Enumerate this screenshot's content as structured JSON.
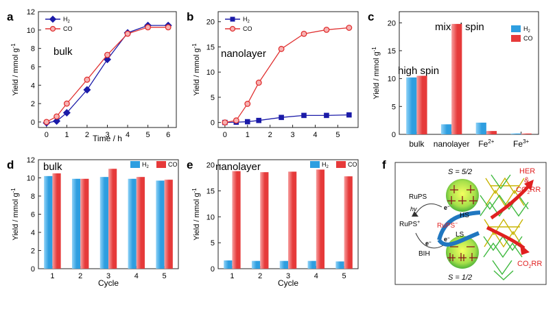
{
  "panels": {
    "a": {
      "letter": "a",
      "annotation": "bulk"
    },
    "b": {
      "letter": "b",
      "annotation": "nanolayer"
    },
    "c": {
      "letter": "c",
      "annotation_high": "high spin",
      "annotation_mixed": "mixed spin"
    },
    "d": {
      "letter": "d",
      "annotation": "bulk"
    },
    "e": {
      "letter": "e",
      "annotation": "nanolayer"
    },
    "f": {
      "letter": "f"
    }
  },
  "colors": {
    "h2_line": "#1a1aa8",
    "co_line": "#e03030",
    "h2_bar": "#2e9ee0",
    "co_bar": "#e63a3a",
    "h2_bar_light": "#8fd2f7",
    "co_bar_light": "#f7a0a0"
  },
  "chart_data": [
    {
      "id": "a",
      "type": "line",
      "x": [
        0,
        0.5,
        1,
        2,
        3,
        4,
        5,
        6
      ],
      "series": [
        {
          "name": "H2",
          "label_main": "H",
          "label_sub": "2",
          "marker": "diamond",
          "values": [
            -0.1,
            0.1,
            1.0,
            3.5,
            6.8,
            9.7,
            10.5,
            10.5
          ]
        },
        {
          "name": "CO",
          "label_main": "CO",
          "label_sub": "",
          "marker": "circle",
          "values": [
            0.0,
            0.6,
            2.0,
            4.6,
            7.3,
            9.6,
            10.3,
            10.3
          ]
        }
      ],
      "xlabel": "Time / h",
      "ylabel": "Yield / mmol g",
      "xlim": [
        -0.4,
        6.4
      ],
      "ylim": [
        -0.6,
        12
      ],
      "xticks": [
        0,
        1,
        2,
        3,
        4,
        5,
        6
      ],
      "yticks": [
        0,
        2,
        4,
        6,
        8,
        10,
        12
      ]
    },
    {
      "id": "b",
      "type": "line",
      "x": [
        0,
        0.5,
        1,
        1.5,
        2.5,
        3.5,
        4.5,
        5.5
      ],
      "series": [
        {
          "name": "H2",
          "label_main": "H",
          "label_sub": "2",
          "marker": "square",
          "values": [
            0.0,
            0.05,
            0.15,
            0.4,
            1.0,
            1.4,
            1.4,
            1.5
          ]
        },
        {
          "name": "CO",
          "label_main": "CO",
          "label_sub": "",
          "marker": "circle",
          "values": [
            0.0,
            0.4,
            3.7,
            7.9,
            14.6,
            17.6,
            18.4,
            18.8
          ]
        }
      ],
      "xlabel": "",
      "ylabel": "Yield / mmol g",
      "xlim": [
        -0.3,
        5.9
      ],
      "ylim": [
        -1,
        22
      ],
      "xticks": [
        0,
        1,
        2,
        3,
        4,
        5
      ],
      "yticks": [
        0,
        5,
        10,
        15,
        20
      ]
    },
    {
      "id": "c",
      "type": "bar",
      "categories": [
        "bulk",
        "nanolayer",
        "Fe",
        "Fe"
      ],
      "category_sups": [
        "",
        "",
        "2+",
        "3+"
      ],
      "series": [
        {
          "name": "H2",
          "label_main": "H",
          "label_sub": "2",
          "values": [
            10.2,
            1.8,
            2.1,
            0.15
          ]
        },
        {
          "name": "CO",
          "label_main": "CO",
          "label_sub": "",
          "values": [
            10.5,
            19.8,
            0.6,
            0.15
          ]
        }
      ],
      "ylabel": "Yield / mmol g",
      "ylim": [
        0,
        22
      ],
      "yticks": [
        0,
        5,
        10,
        15,
        20
      ]
    },
    {
      "id": "d",
      "type": "bar",
      "categories": [
        "1",
        "2",
        "3",
        "4",
        "5"
      ],
      "series": [
        {
          "name": "H2",
          "label_main": "H",
          "label_sub": "2",
          "values": [
            10.2,
            9.9,
            10.1,
            9.9,
            9.7
          ]
        },
        {
          "name": "CO",
          "label_main": "CO",
          "label_sub": "",
          "values": [
            10.5,
            9.9,
            11.0,
            10.1,
            9.8
          ]
        }
      ],
      "xlabel": "Cycle",
      "ylabel": "Yield / mmol g",
      "ylim": [
        0,
        12
      ],
      "yticks": [
        0,
        2,
        4,
        6,
        8,
        10,
        12
      ]
    },
    {
      "id": "e",
      "type": "bar",
      "categories": [
        "1",
        "2",
        "3",
        "4",
        "5"
      ],
      "series": [
        {
          "name": "H2",
          "label_main": "H",
          "label_sub": "2",
          "values": [
            1.6,
            1.5,
            1.5,
            1.5,
            1.4
          ]
        },
        {
          "name": "CO",
          "label_main": "CO",
          "label_sub": "",
          "values": [
            18.8,
            18.6,
            18.7,
            19.1,
            17.8
          ]
        }
      ],
      "xlabel": "Cycle",
      "ylabel": "Yield / mmol g",
      "ylim": [
        0,
        21
      ],
      "yticks": [
        0,
        5,
        10,
        15,
        20
      ]
    }
  ],
  "scheme": {
    "s_high": "S = 5/2",
    "s_low": "S = 1/2",
    "hs": "HS",
    "ls": "LS",
    "rups": "RuPS",
    "rups_plus": "RuPS",
    "rups_minus": "RuPS",
    "bih": "BIH",
    "hv": "hv",
    "electron": "e",
    "her_title": "HER",
    "her_amp": "&",
    "co2rr": "CO",
    "co2rr_tail": "RR",
    "co2rr_bottom": "CO",
    "co2rr_bottom_tail": "RR"
  }
}
